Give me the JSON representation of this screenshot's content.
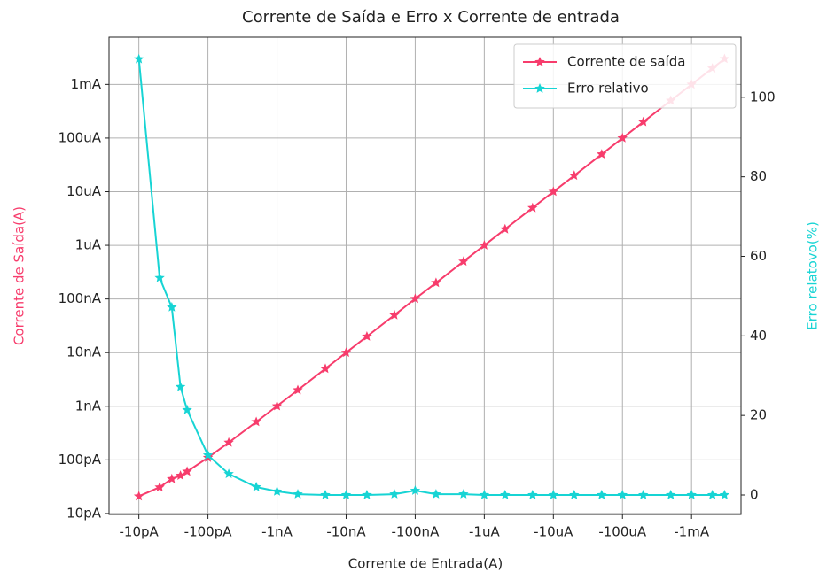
{
  "chart_data": {
    "type": "line",
    "title": "Corrente de Saída e Erro x Corrente de entrada",
    "xlabel": "Corrente de Entrada(A)",
    "ylabel": "Corrente de Saída(A)",
    "y2label": "Erro relatovo(%)",
    "xscale": "log",
    "yscale": "log",
    "grid": true,
    "legend": "upper right",
    "x": [
      1e-11,
      2e-11,
      3e-11,
      4e-11,
      5e-11,
      1e-10,
      2e-10,
      5e-10,
      1e-09,
      2e-09,
      5e-09,
      1e-08,
      2e-08,
      5e-08,
      1e-07,
      2e-07,
      5e-07,
      1e-06,
      2e-06,
      5e-06,
      1e-05,
      2e-05,
      5e-05,
      0.0001,
      0.0002,
      0.0005,
      0.001,
      0.002,
      0.003
    ],
    "series": [
      {
        "name": "Corrente de saída",
        "color": "#f73c6c",
        "axis": "y",
        "values": [
          2.1e-11,
          3.09e-11,
          4.42e-11,
          5.09e-11,
          6.07e-11,
          1.1e-10,
          2.11e-10,
          5.1e-10,
          1.009e-09,
          2.004e-09,
          5e-09,
          1e-08,
          2e-08,
          5.01e-08,
          1.011e-07,
          2.004e-07,
          5.01e-07,
          1e-06,
          2e-06,
          5e-06,
          1e-05,
          2e-05,
          5e-05,
          0.0001,
          0.0002,
          0.0005,
          0.001,
          0.002,
          0.003
        ]
      },
      {
        "name": "Erro relativo",
        "color": "#17d4d4",
        "axis": "y2",
        "values": [
          109.6,
          54.6,
          47.2,
          27.2,
          21.4,
          10,
          5.3,
          2,
          0.9,
          0.2,
          0,
          0,
          0,
          0.2,
          1.1,
          0.2,
          0.2,
          0,
          0,
          0,
          0,
          0,
          0,
          0,
          0,
          0,
          0,
          0,
          0
        ]
      }
    ],
    "xlim": [
      3.7e-12,
      0.0052
    ],
    "ylim": [
      9.6e-12,
      0.0076
    ],
    "y2lim": [
      -4.9,
      115.1
    ],
    "xticks": [
      {
        "value": 1e-11,
        "label": "-10pA"
      },
      {
        "value": 1e-10,
        "label": "-100pA"
      },
      {
        "value": 1e-09,
        "label": "-1nA"
      },
      {
        "value": 1e-08,
        "label": "-10nA"
      },
      {
        "value": 1e-07,
        "label": "-100nA"
      },
      {
        "value": 1e-06,
        "label": "-1uA"
      },
      {
        "value": 1e-05,
        "label": "-10uA"
      },
      {
        "value": 0.0001,
        "label": "-100uA"
      },
      {
        "value": 0.001,
        "label": "-1mA"
      }
    ],
    "yticks": [
      {
        "value": 1e-11,
        "label": "10pA"
      },
      {
        "value": 1e-10,
        "label": "100pA"
      },
      {
        "value": 1e-09,
        "label": "1nA"
      },
      {
        "value": 1e-08,
        "label": "10nA"
      },
      {
        "value": 1e-07,
        "label": "100nA"
      },
      {
        "value": 1e-06,
        "label": "1uA"
      },
      {
        "value": 1e-05,
        "label": "10uA"
      },
      {
        "value": 0.0001,
        "label": "100uA"
      },
      {
        "value": 0.001,
        "label": "1mA"
      }
    ],
    "y2ticks": [
      0,
      20,
      40,
      60,
      80,
      100
    ]
  }
}
